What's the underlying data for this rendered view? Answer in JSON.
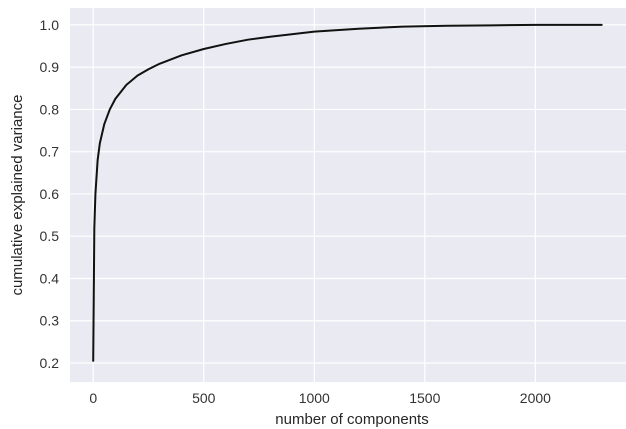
{
  "chart_data": {
    "type": "line",
    "title": "",
    "xlabel": "number of components",
    "ylabel": "cumulative explained variance",
    "xlim": [
      -105,
      2410
    ],
    "ylim": [
      0.155,
      1.04
    ],
    "xticks": [
      0,
      500,
      1000,
      1500,
      2000
    ],
    "yticks": [
      0.2,
      0.3,
      0.4,
      0.5,
      0.6,
      0.7,
      0.8,
      0.9,
      1.0
    ],
    "ytick_labels": [
      "0.2",
      "0.3",
      "0.4",
      "0.5",
      "0.6",
      "0.7",
      "0.8",
      "0.9",
      "1.0"
    ],
    "grid": true,
    "background": "#eaeaf2",
    "grid_color": "#ffffff",
    "series": [
      {
        "color": "#111111",
        "x": [
          0,
          5,
          10,
          20,
          30,
          50,
          75,
          100,
          150,
          200,
          250,
          300,
          400,
          500,
          600,
          700,
          800,
          1000,
          1200,
          1400,
          1600,
          1800,
          2000,
          2200,
          2300
        ],
        "y": [
          0.205,
          0.52,
          0.6,
          0.68,
          0.72,
          0.765,
          0.8,
          0.825,
          0.858,
          0.88,
          0.895,
          0.908,
          0.928,
          0.943,
          0.955,
          0.965,
          0.972,
          0.984,
          0.991,
          0.996,
          0.998,
          0.999,
          1.0,
          1.0,
          1.0
        ]
      }
    ]
  }
}
